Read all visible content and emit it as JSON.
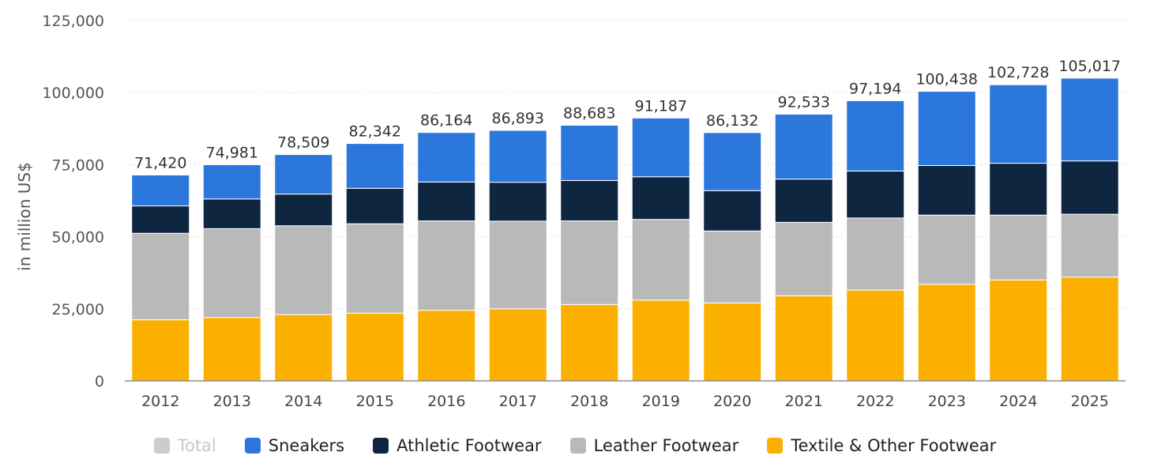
{
  "chart_data": {
    "type": "bar",
    "stacked": true,
    "ylabel": "in million US$",
    "ylim": [
      0,
      125000
    ],
    "yticks": [
      0,
      25000,
      50000,
      75000,
      100000,
      125000
    ],
    "grid": true,
    "legend_position": "bottom",
    "categories": [
      "2012",
      "2013",
      "2014",
      "2015",
      "2016",
      "2017",
      "2018",
      "2019",
      "2020",
      "2021",
      "2022",
      "2023",
      "2024",
      "2025"
    ],
    "totals": [
      71420,
      74981,
      78509,
      82342,
      86164,
      86893,
      88683,
      91187,
      86132,
      92533,
      97194,
      100438,
      102728,
      105017
    ],
    "total_labels": [
      "71,420",
      "74,981",
      "78,509",
      "82,342",
      "86,164",
      "86,893",
      "88,683",
      "91,187",
      "86,132",
      "92,533",
      "97,194",
      "100,438",
      "102,728",
      "105,017"
    ],
    "series": [
      {
        "name": "Textile & Other Footwear",
        "color": "#fbb000",
        "values": [
          21200,
          22000,
          23000,
          23500,
          24500,
          25000,
          26500,
          28000,
          27000,
          29500,
          31500,
          33500,
          35000,
          36000
        ]
      },
      {
        "name": "Leather Footwear",
        "color": "#b9b9b9",
        "values": [
          30000,
          30800,
          30800,
          31000,
          31000,
          30400,
          29000,
          28000,
          25000,
          25500,
          25000,
          24000,
          22500,
          21800
        ]
      },
      {
        "name": "Athletic Footwear",
        "color": "#0f2640",
        "values": [
          9500,
          10300,
          11000,
          12300,
          13500,
          13500,
          14000,
          14800,
          14000,
          15000,
          16300,
          17200,
          18000,
          18500
        ]
      },
      {
        "name": "Sneakers",
        "color": "#2b77dc",
        "values": [
          10720,
          11881,
          13709,
          15542,
          17164,
          17993,
          19183,
          20387,
          20132,
          22533,
          24394,
          25738,
          27228,
          28717
        ]
      }
    ],
    "legend": [
      {
        "name": "Total",
        "color": "#cccccc",
        "muted": true
      },
      {
        "name": "Sneakers",
        "color": "#2b77dc",
        "muted": false
      },
      {
        "name": "Athletic Footwear",
        "color": "#0f2640",
        "muted": false
      },
      {
        "name": "Leather Footwear",
        "color": "#b9b9b9",
        "muted": false
      },
      {
        "name": "Textile & Other Footwear",
        "color": "#fbb000",
        "muted": false
      }
    ]
  }
}
